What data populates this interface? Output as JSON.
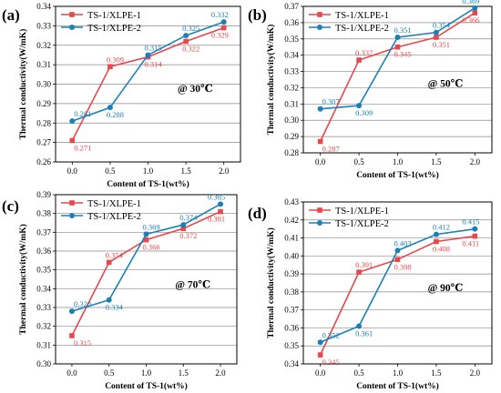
{
  "colors": {
    "series1": "#e8474c",
    "series2": "#1a80b6",
    "grid": "#8a8a8a"
  },
  "chart_data": [
    {
      "panel": "(a)",
      "type": "line",
      "xlabel": "Content of TS-1(wt%)",
      "ylabel": "Thermal conductivity(W/mK)",
      "condition": "@ 30℃",
      "x": [
        0.0,
        0.5,
        1.0,
        1.5,
        2.0
      ],
      "xticks": [
        "0.0",
        "0.5",
        "1.0",
        "1.5",
        "2.0"
      ],
      "ylim": [
        0.26,
        0.34
      ],
      "yticks": [
        "0.26",
        "0.27",
        "0.28",
        "0.29",
        "0.30",
        "0.31",
        "0.32",
        "0.33",
        "0.34"
      ],
      "legend_position": "top-left",
      "series": [
        {
          "name": "TS-1/XLPE-1",
          "values": [
            0.271,
            0.309,
            0.314,
            0.322,
            0.329
          ],
          "labels": [
            "0.271",
            "0.309",
            "0.314",
            "0.322",
            "0.329"
          ]
        },
        {
          "name": "TS-1/XLPE-2",
          "values": [
            0.281,
            0.288,
            0.315,
            0.325,
            0.332
          ],
          "labels": [
            "0.281",
            "0.288",
            "0.315",
            "0.325",
            "0.332"
          ]
        }
      ]
    },
    {
      "panel": "(b)",
      "type": "line",
      "xlabel": "Content of TS-1(wt%)",
      "ylabel": "Thermal conductivity(W/mK)",
      "condition": "@ 50℃",
      "x": [
        0.0,
        0.5,
        1.0,
        1.5,
        2.0
      ],
      "xticks": [
        "0.0",
        "0.5",
        "1.0",
        "1.5",
        "2.0"
      ],
      "ylim": [
        0.28,
        0.37
      ],
      "yticks": [
        "0.28",
        "0.29",
        "0.30",
        "0.31",
        "0.32",
        "0.33",
        "0.34",
        "0.35",
        "0.36",
        "0.37"
      ],
      "legend_position": "top-left",
      "series": [
        {
          "name": "TS-1/XLPE-1",
          "values": [
            0.287,
            0.337,
            0.345,
            0.351,
            0.366
          ],
          "labels": [
            "0.287",
            "0.337",
            "0.345",
            "0.351",
            "0.366"
          ]
        },
        {
          "name": "TS-1/XLPE-2",
          "values": [
            0.307,
            0.309,
            0.351,
            0.354,
            0.369
          ],
          "labels": [
            "0.307",
            "0.309",
            "0.351",
            "0.354",
            "0.369"
          ]
        }
      ]
    },
    {
      "panel": "(c)",
      "type": "line",
      "xlabel": "Content of TS-1(wt%)",
      "ylabel": "Thermal conductivity(W/mK)",
      "condition": "@ 70℃",
      "x": [
        0.0,
        0.5,
        1.0,
        1.5,
        2.0
      ],
      "xticks": [
        "0.0",
        "0.5",
        "1.0",
        "1.5",
        "2.0"
      ],
      "ylim": [
        0.3,
        0.39
      ],
      "yticks": [
        "0.30",
        "0.31",
        "0.32",
        "0.33",
        "0.34",
        "0.35",
        "0.36",
        "0.37",
        "0.38",
        "0.39"
      ],
      "legend_position": "top-left",
      "series": [
        {
          "name": "TS-1/XLPE-1",
          "values": [
            0.315,
            0.354,
            0.366,
            0.372,
            0.381
          ],
          "labels": [
            "0.315",
            "0.354",
            "0.366",
            "0.372",
            "0.381"
          ]
        },
        {
          "name": "TS-1/XLPE-2",
          "values": [
            0.328,
            0.334,
            0.369,
            0.374,
            0.385
          ],
          "labels": [
            "0.328",
            "0.334",
            "0.369",
            "0.374",
            "0.385"
          ]
        }
      ]
    },
    {
      "panel": "(d)",
      "type": "line",
      "xlabel": "Content of TS-1(wt%)",
      "ylabel": "Thermal conductivity(W/mK)",
      "condition": "@ 90℃",
      "x": [
        0.0,
        0.5,
        1.0,
        1.5,
        2.0
      ],
      "xticks": [
        "0.0",
        "0.5",
        "1.0",
        "1.5",
        "2.0"
      ],
      "ylim": [
        0.34,
        0.43
      ],
      "yticks": [
        "0.34",
        "0.35",
        "0.36",
        "0.37",
        "0.38",
        "0.39",
        "0.40",
        "0.41",
        "0.42",
        "0.43"
      ],
      "legend_position": "top-left",
      "series": [
        {
          "name": "TS-1/XLPE-1",
          "values": [
            0.345,
            0.391,
            0.398,
            0.408,
            0.411
          ],
          "labels": [
            "0.345",
            "0.391",
            "0.398",
            "0.408",
            "0.411"
          ]
        },
        {
          "name": "TS-1/XLPE-2",
          "values": [
            0.352,
            0.361,
            0.403,
            0.412,
            0.415
          ],
          "labels": [
            "0.352",
            "0.361",
            "0.403",
            "0.412",
            "0.415"
          ]
        }
      ]
    }
  ]
}
